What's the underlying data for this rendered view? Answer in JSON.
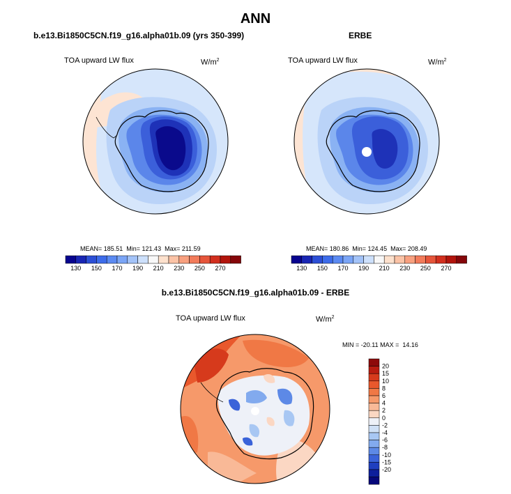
{
  "figure": {
    "title": "ANN",
    "diff_title": "b.e13.Bi1850C5CN.f19_g16.alpha01b.09 - ERBE"
  },
  "chart_data": [
    {
      "type": "heatmap",
      "projection": "south-polar-stereographic",
      "title": "b.e13.Bi1850C5CN.f19_g16.alpha01b.09 (yrs 350-399)",
      "field_label": "TOA upward LW flux",
      "units_label": "W/m",
      "units_sup": "2",
      "stats": {
        "mean": 185.51,
        "min": 121.43,
        "max": 211.59
      },
      "stats_text": "MEAN= 185.51  Min= 121.43  Max= 211.59",
      "colorbar_levels": [
        130,
        140,
        150,
        160,
        170,
        180,
        190,
        200,
        210,
        220,
        230,
        240,
        250,
        260,
        270
      ],
      "colorbar_labels": [
        "130",
        "150",
        "170",
        "190",
        "210",
        "230",
        "250",
        "270"
      ],
      "colorbar_colors": [
        "#08048f",
        "#1926b4",
        "#2c4fd6",
        "#3d6cea",
        "#5b8af2",
        "#7ba5f6",
        "#a3c3f8",
        "#cde0fb",
        "#f8f8f8",
        "#fde1cd",
        "#fbc3a6",
        "#f8a07f",
        "#f27b5a",
        "#e6553a",
        "#d22f1e",
        "#b2140c",
        "#85060a"
      ]
    },
    {
      "type": "heatmap",
      "projection": "south-polar-stereographic",
      "title": "ERBE",
      "field_label": "TOA upward LW flux",
      "units_label": "W/m",
      "units_sup": "2",
      "stats": {
        "mean": 180.86,
        "min": 124.45,
        "max": 208.49
      },
      "stats_text": "MEAN= 180.86  Min= 124.45  Max= 208.49",
      "colorbar_levels": [
        130,
        140,
        150,
        160,
        170,
        180,
        190,
        200,
        210,
        220,
        230,
        240,
        250,
        260,
        270
      ],
      "colorbar_labels": [
        "130",
        "150",
        "170",
        "190",
        "210",
        "230",
        "250",
        "270"
      ],
      "colorbar_colors": [
        "#08048f",
        "#1926b4",
        "#2c4fd6",
        "#3d6cea",
        "#5b8af2",
        "#7ba5f6",
        "#a3c3f8",
        "#cde0fb",
        "#f8f8f8",
        "#fde1cd",
        "#fbc3a6",
        "#f8a07f",
        "#f27b5a",
        "#e6553a",
        "#d22f1e",
        "#b2140c",
        "#85060a"
      ]
    },
    {
      "type": "heatmap",
      "projection": "south-polar-stereographic",
      "title": "b.e13.Bi1850C5CN.f19_g16.alpha01b.09 - ERBE",
      "field_label": "TOA upward LW flux",
      "units_label": "W/m",
      "units_sup": "2",
      "stats": {
        "min": -20.11,
        "max": 14.16
      },
      "stats_text": "MIN = -20.11 MAX =  14.16",
      "colorbar_levels": [
        20,
        15,
        10,
        8,
        6,
        4,
        2,
        0,
        -2,
        -4,
        -6,
        -8,
        -10,
        -15,
        -20
      ],
      "colorbar_labels": [
        "20",
        "15",
        "10",
        "8",
        "6",
        "4",
        "2",
        "0",
        "-2",
        "-4",
        "-6",
        "-8",
        "-10",
        "-15",
        "-20"
      ],
      "colorbar_colors": [
        "#8d0a0a",
        "#b81c10",
        "#d63a1c",
        "#e9582c",
        "#f07845",
        "#f6996a",
        "#f9b997",
        "#fbd7c3",
        "#eef1f8",
        "#cfe0f6",
        "#a8c7f3",
        "#82aaee",
        "#5d89e6",
        "#3a63d9",
        "#1f3fbf",
        "#0d1f9c",
        "#06087a"
      ]
    }
  ]
}
